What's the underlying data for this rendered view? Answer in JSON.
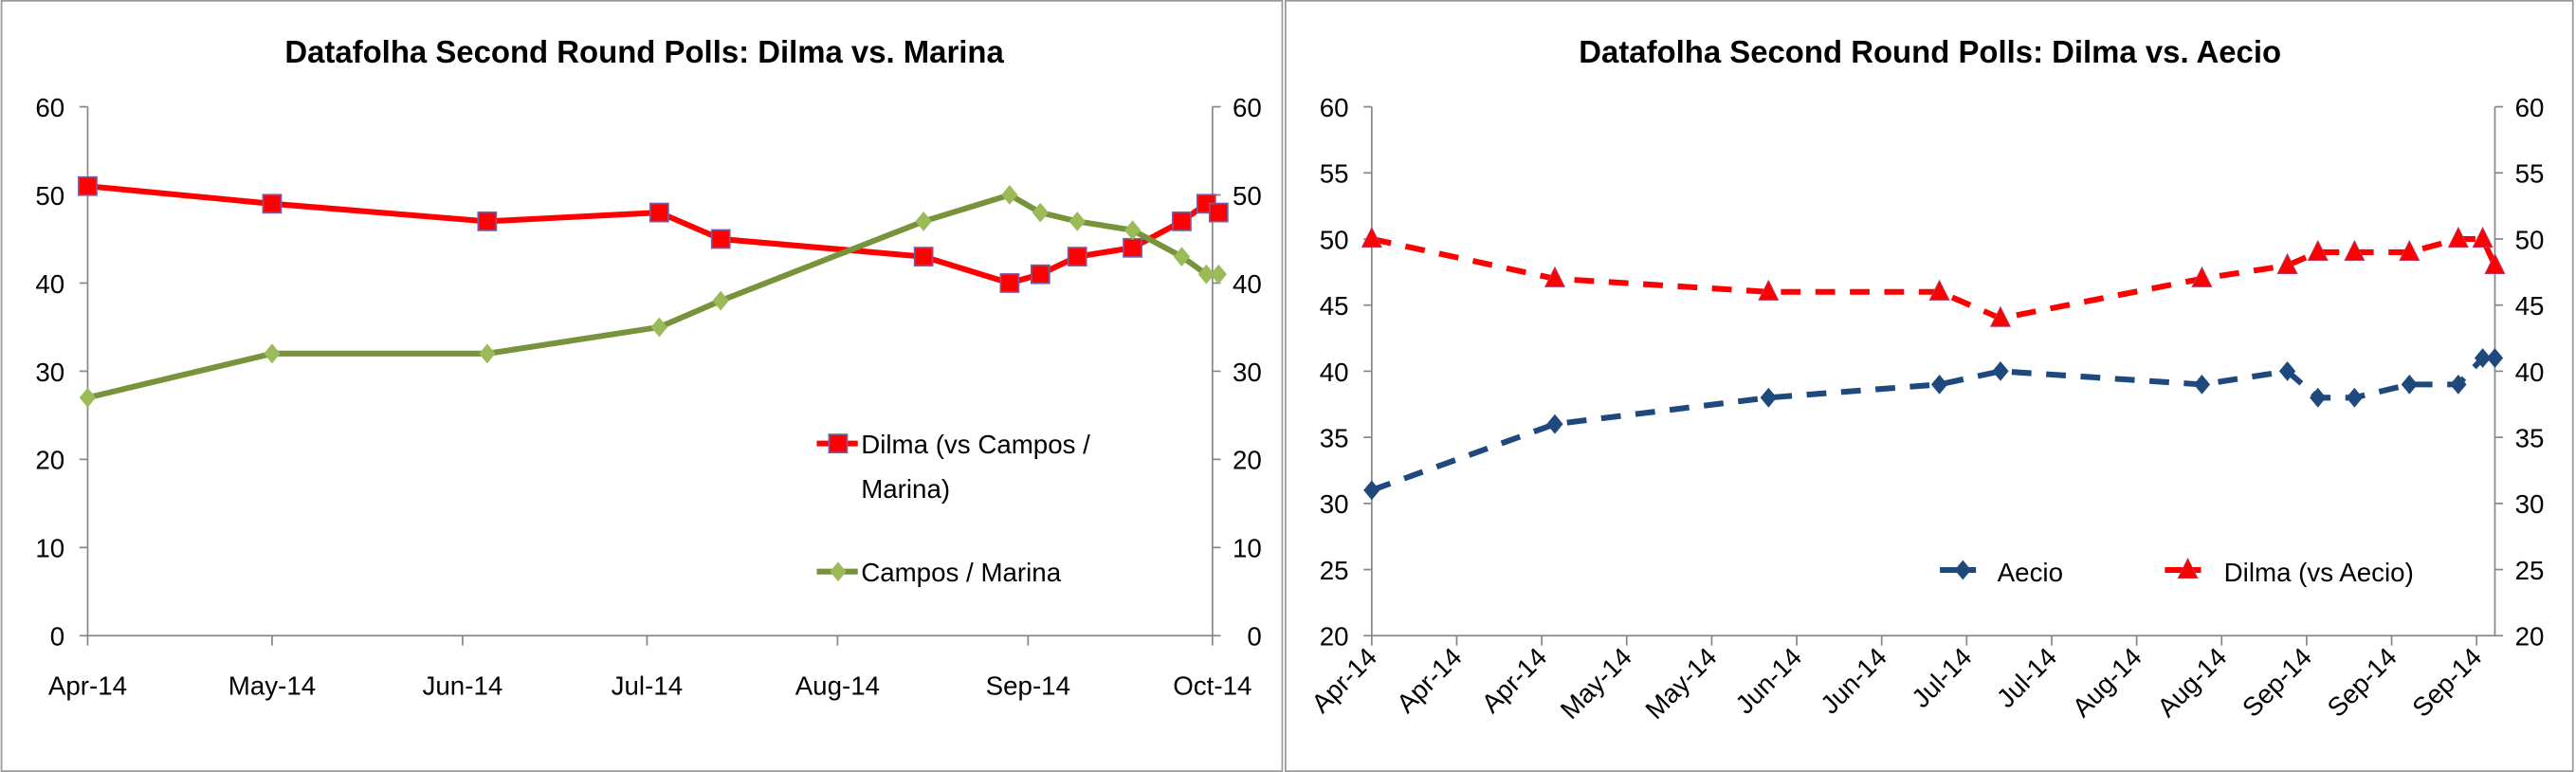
{
  "chart_data": [
    {
      "type": "line",
      "title": "Datafolha Second Round Polls: Dilma vs. Marina",
      "xlabel": "",
      "ylabel": "",
      "ylim": [
        0,
        60
      ],
      "y_ticks": [
        "0",
        "10",
        "20",
        "30",
        "40",
        "50",
        "60"
      ],
      "secondary_y_ticks": [
        "0",
        "10",
        "20",
        "30",
        "40",
        "50",
        "60"
      ],
      "x_range": [
        "2014-04-01",
        "2014-10-01"
      ],
      "x_ticks": [
        {
          "date": "2014-04-01",
          "label": "Apr-14"
        },
        {
          "date": "2014-05-01",
          "label": "May-14"
        },
        {
          "date": "2014-06-01",
          "label": "Jun-14"
        },
        {
          "date": "2014-07-01",
          "label": "Jul-14"
        },
        {
          "date": "2014-08-01",
          "label": "Aug-14"
        },
        {
          "date": "2014-09-01",
          "label": "Sep-14"
        },
        {
          "date": "2014-10-01",
          "label": "Oct-14"
        }
      ],
      "x": [
        "2014-04-01",
        "2014-05-01",
        "2014-06-05",
        "2014-07-03",
        "2014-07-13",
        "2014-08-15",
        "2014-08-29",
        "2014-09-03",
        "2014-09-09",
        "2014-09-18",
        "2014-09-26",
        "2014-09-30",
        "2014-10-02"
      ],
      "series": [
        {
          "name": "Dilma (vs Campos / Marina)",
          "color": "#FF0000",
          "marker": "square",
          "dashed": false,
          "values": [
            51,
            49,
            47,
            48,
            45,
            43,
            40,
            41,
            43,
            44,
            47,
            49,
            48
          ]
        },
        {
          "name": "Campos / Marina",
          "color": "#77933C",
          "marker_color": "#9BBB59",
          "marker": "diamond",
          "dashed": false,
          "values": [
            27,
            32,
            32,
            35,
            38,
            47,
            50,
            48,
            47,
            46,
            43,
            41,
            41
          ]
        }
      ],
      "legend": "right-center",
      "grid": false
    },
    {
      "type": "line",
      "title": "Datafolha Second Round Polls: Dilma vs. Aecio",
      "xlabel": "",
      "ylabel": "",
      "ylim": [
        20,
        60
      ],
      "y_ticks": [
        "20",
        "25",
        "30",
        "35",
        "40",
        "45",
        "50",
        "55",
        "60"
      ],
      "secondary_y_ticks": [
        "20",
        "25",
        "30",
        "35",
        "40",
        "45",
        "50",
        "55",
        "60"
      ],
      "x_range": [
        "2014-04-01",
        "2014-10-02"
      ],
      "x_tick_labels": [
        "Apr-14",
        "Apr-14",
        "Apr-14",
        "May-14",
        "May-14",
        "Jun-14",
        "Jun-14",
        "Jul-14",
        "Jul-14",
        "Aug-14",
        "Aug-14",
        "Sep-14",
        "Sep-14",
        "Sep-14"
      ],
      "x": [
        "2014-04-01",
        "2014-05-01",
        "2014-06-05",
        "2014-07-03",
        "2014-07-13",
        "2014-08-15",
        "2014-08-29",
        "2014-09-03",
        "2014-09-09",
        "2014-09-18",
        "2014-09-26",
        "2014-09-30",
        "2014-10-02"
      ],
      "series": [
        {
          "name": "Aecio",
          "color": "#1F497D",
          "marker": "diamond",
          "dashed": true,
          "values": [
            31,
            36,
            38,
            39,
            40,
            39,
            40,
            38,
            38,
            39,
            39,
            41,
            41
          ]
        },
        {
          "name": "Dilma (vs Aecio)",
          "color": "#FF0000",
          "marker": "triangle",
          "dashed": true,
          "values": [
            50,
            47,
            46,
            46,
            44,
            47,
            48,
            49,
            49,
            49,
            50,
            50,
            48
          ]
        }
      ],
      "legend": "bottom-right",
      "grid": false
    }
  ]
}
